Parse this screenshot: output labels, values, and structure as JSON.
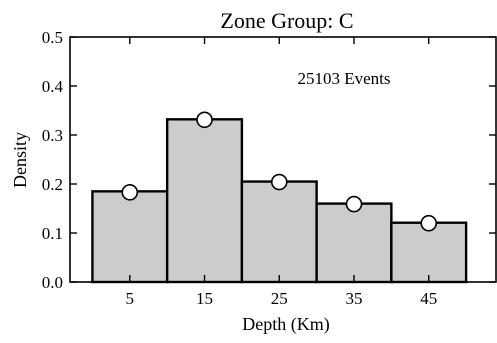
{
  "chart_data": {
    "type": "bar",
    "title": "Zone Group: C",
    "xlabel": "Depth (Km)",
    "ylabel": "Density",
    "annotation": "25103 Events",
    "categories": [
      "5",
      "15",
      "25",
      "35",
      "45"
    ],
    "x": [
      5,
      15,
      25,
      35,
      45
    ],
    "bin_edges": [
      0,
      10,
      20,
      30,
      40,
      50
    ],
    "values": [
      0.185,
      0.332,
      0.205,
      0.16,
      0.121
    ],
    "points": [
      0.183,
      0.331,
      0.204,
      0.159,
      0.12
    ],
    "xlim": [
      -3,
      54
    ],
    "ylim": [
      0,
      0.5
    ],
    "yticks": [
      "0.0",
      "0.1",
      "0.2",
      "0.3",
      "0.4",
      "0.5"
    ],
    "ytick_values": [
      0,
      0.1,
      0.2,
      0.3,
      0.4,
      0.5
    ],
    "grid": false,
    "bar_color": "#cccccc",
    "edge_color": "#000000",
    "marker_color": "#ffffff"
  }
}
